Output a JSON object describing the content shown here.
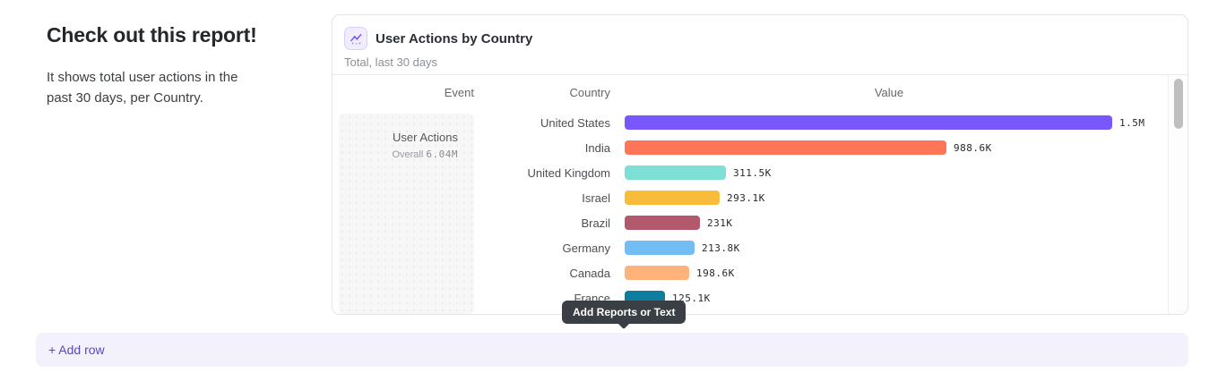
{
  "page": {
    "heading": "Check out this report!",
    "description": "It shows total user actions in the past 30 days, per Country."
  },
  "card": {
    "title": "User Actions by Country",
    "subtitle": "Total, last 30 days",
    "icon": "line-chart-icon"
  },
  "chart_data": {
    "type": "bar",
    "orientation": "horizontal",
    "title": "User Actions by Country",
    "subtitle": "Total, last 30 days",
    "columns": [
      "Event",
      "Country",
      "Value"
    ],
    "event": {
      "name": "User Actions",
      "overall_label": "Overall",
      "overall_value": "6.04M"
    },
    "categories": [
      "United States",
      "India",
      "United Kingdom",
      "Israel",
      "Brazil",
      "Germany",
      "Canada",
      "France"
    ],
    "values": [
      1500000,
      988600,
      311500,
      293100,
      231000,
      213800,
      198600,
      125100
    ],
    "value_labels": [
      "1.5M",
      "988.6K",
      "311.5K",
      "293.1K",
      "231K",
      "213.8K",
      "198.6K",
      "125.1K"
    ],
    "bar_colors": [
      "#7857FD",
      "#FF7557",
      "#7EE0D4",
      "#F8BC3B",
      "#B2596E",
      "#72BEF4",
      "#FFB27A",
      "#0D7EA0"
    ],
    "xmax": 1500000,
    "grid": false,
    "legend": "none"
  },
  "tooltip": {
    "label": "Add Reports or Text"
  },
  "add_row_button": {
    "label": "+ Add row"
  },
  "theme": {
    "accent_purple": "#7856FF",
    "add_row_bg": "#F3F1FC",
    "add_row_text": "#5849BE",
    "tooltip_bg": "#3A3F45",
    "card_border": "#E3E4E6",
    "scrollbar_thumb": "#BFBFBF"
  }
}
